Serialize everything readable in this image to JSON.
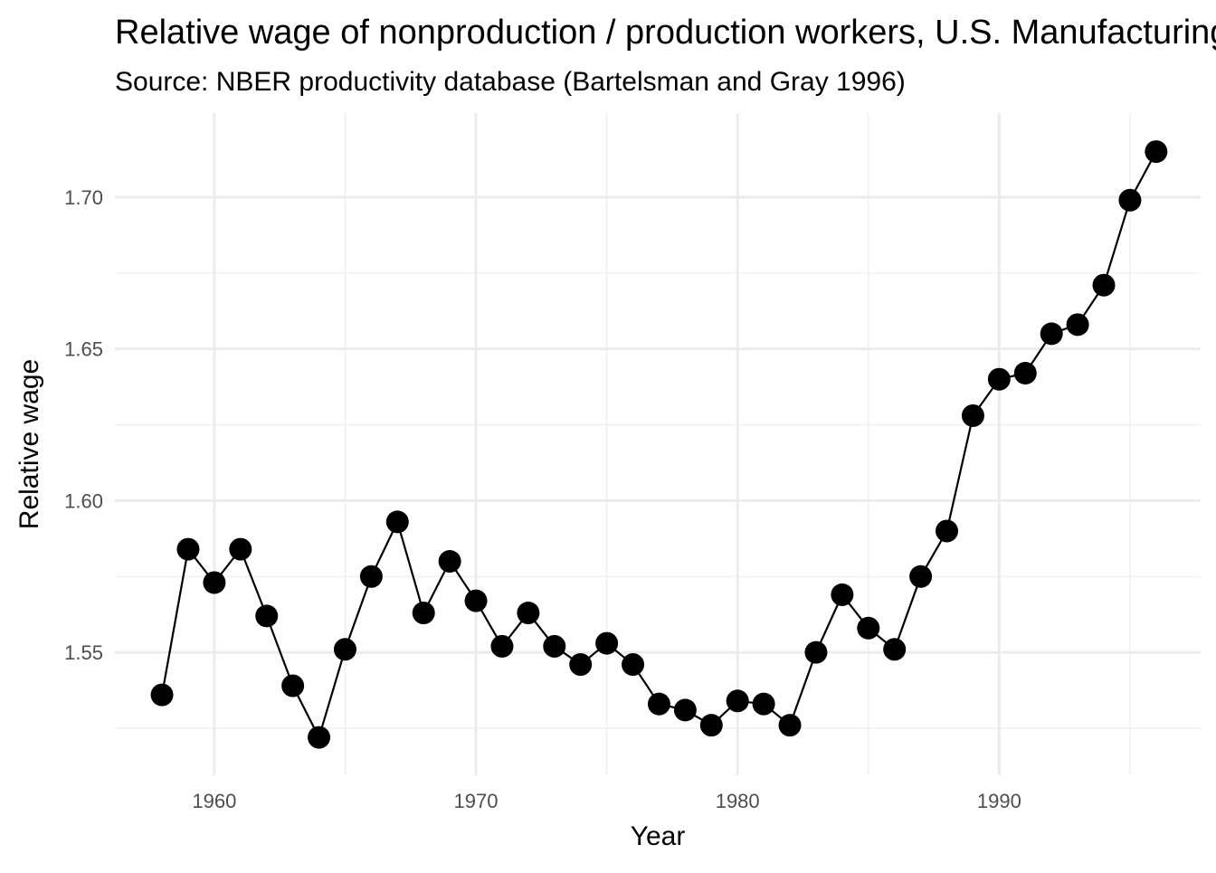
{
  "chart_data": {
    "type": "line",
    "title": "Relative wage of nonproduction / production workers, U.S. Manufacturing",
    "subtitle": "Source: NBER productivity database (Bartelsman and Gray 1996)",
    "xlabel": "Year",
    "ylabel": "Relative wage",
    "xlim": [
      1956.2,
      1997.7
    ],
    "ylim": [
      1.5095,
      1.7277
    ],
    "x_ticks": [
      1960,
      1970,
      1980,
      1990
    ],
    "x_tick_labels": [
      "1960",
      "1970",
      "1980",
      "1990"
    ],
    "x_minor_ticks": [
      1965,
      1975,
      1985,
      1995
    ],
    "y_ticks": [
      1.55,
      1.6,
      1.65,
      1.7
    ],
    "y_tick_labels": [
      "1.55",
      "1.60",
      "1.65",
      "1.70"
    ],
    "y_minor_ticks": [
      1.525,
      1.575,
      1.625,
      1.675
    ],
    "grid": true,
    "markers": true,
    "legend": "none",
    "x": [
      1958,
      1959,
      1960,
      1961,
      1962,
      1963,
      1964,
      1965,
      1966,
      1967,
      1968,
      1969,
      1970,
      1971,
      1972,
      1973,
      1974,
      1975,
      1976,
      1977,
      1978,
      1979,
      1980,
      1981,
      1982,
      1983,
      1984,
      1985,
      1986,
      1987,
      1988,
      1989,
      1990,
      1991,
      1992,
      1993,
      1994,
      1995,
      1996
    ],
    "series": [
      {
        "values": [
          1.536,
          1.584,
          1.573,
          1.584,
          1.562,
          1.539,
          1.522,
          1.551,
          1.575,
          1.593,
          1.563,
          1.58,
          1.567,
          1.552,
          1.563,
          1.552,
          1.546,
          1.553,
          1.546,
          1.533,
          1.531,
          1.526,
          1.534,
          1.533,
          1.526,
          1.55,
          1.569,
          1.558,
          1.551,
          1.575,
          1.59,
          1.628,
          1.64,
          1.642,
          1.655,
          1.658,
          1.671,
          1.699,
          1.715
        ],
        "color": "#000000"
      }
    ]
  }
}
